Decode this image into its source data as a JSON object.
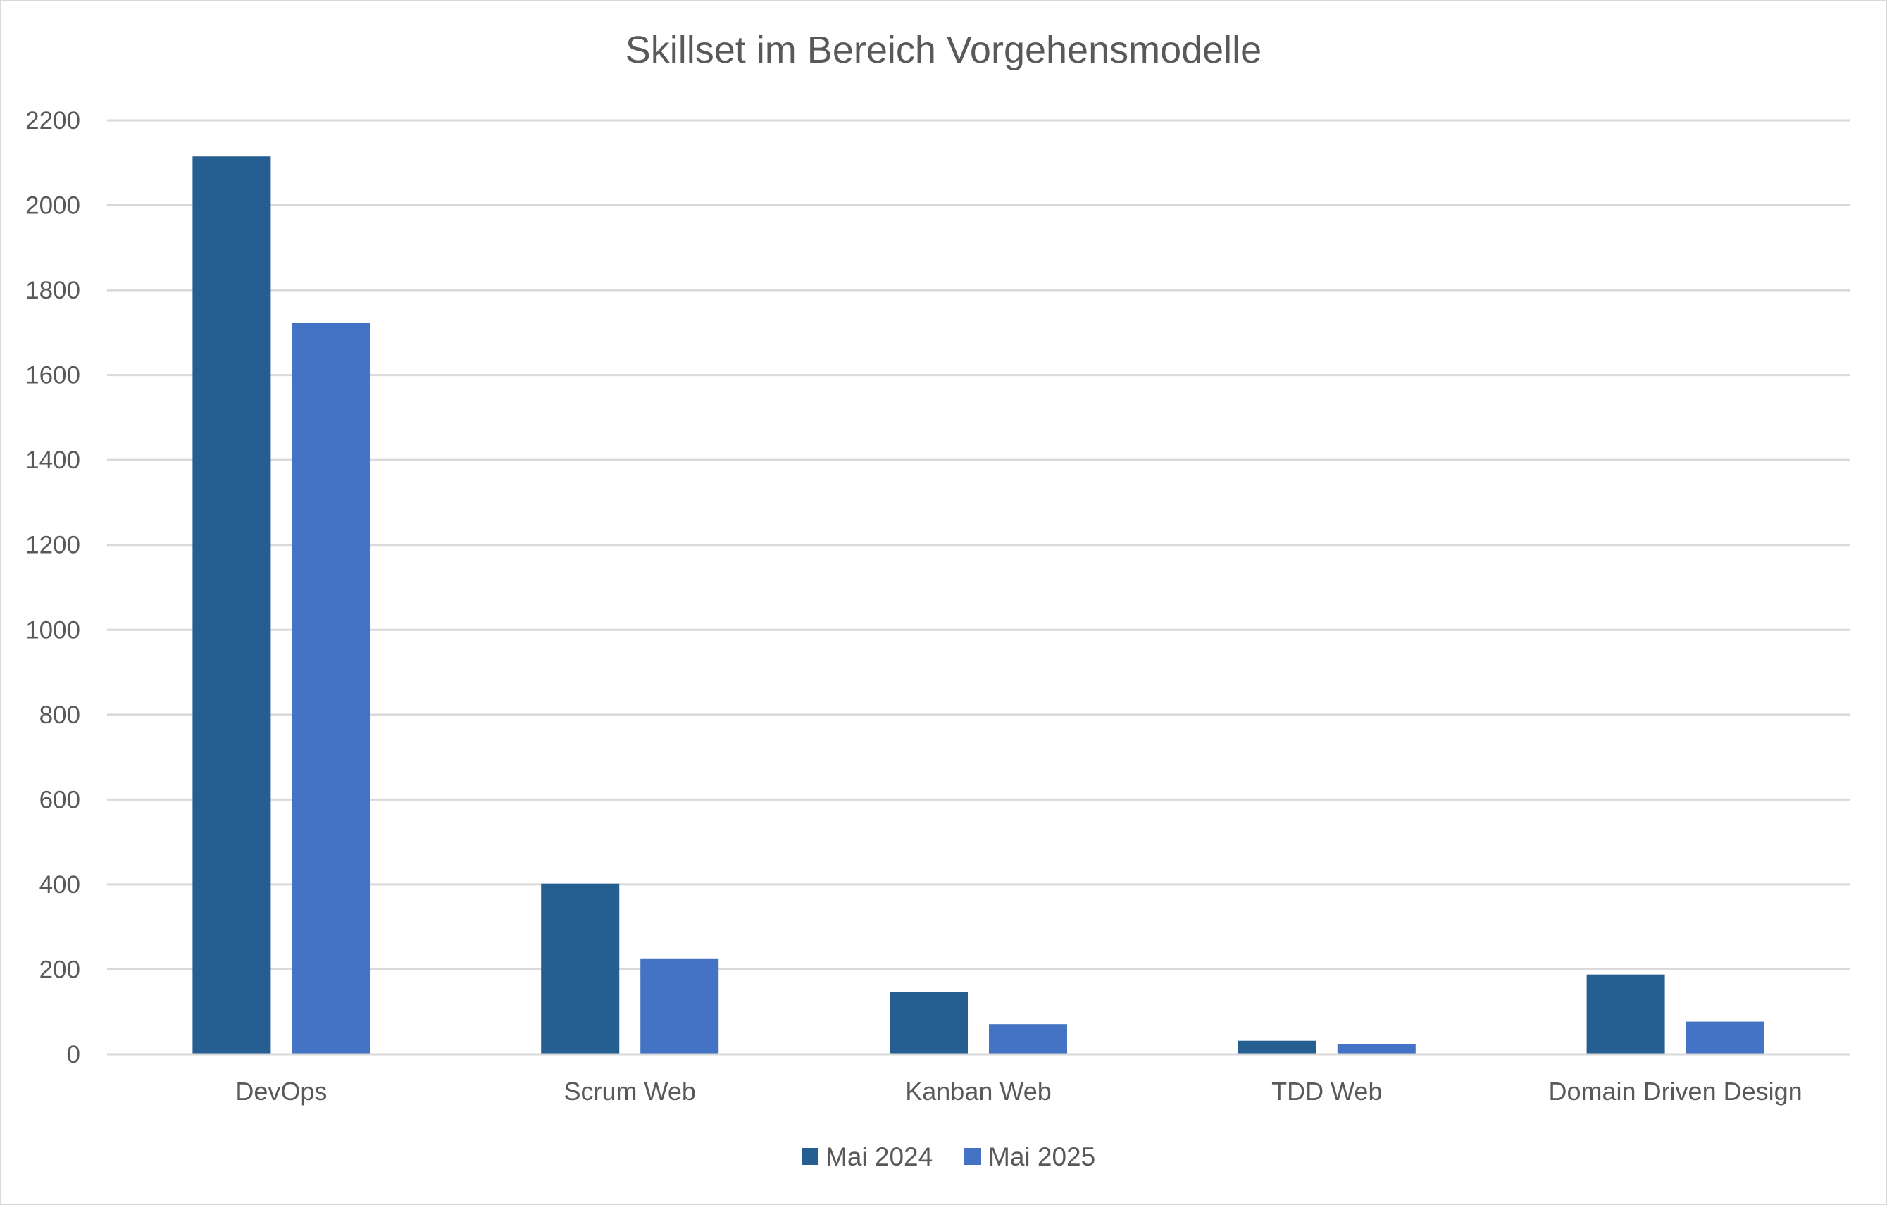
{
  "chart_data": {
    "type": "bar",
    "title": "Skillset im Bereich Vorgehensmodelle",
    "xlabel": "",
    "ylabel": "",
    "categories": [
      "DevOps",
      "Scrum Web",
      "Kanban Web",
      "TDD Web",
      "Domain Driven Design"
    ],
    "series": [
      {
        "name": "Mai 2024",
        "color": "#255e91",
        "values": [
          2115,
          402,
          147,
          32,
          188
        ]
      },
      {
        "name": "Mai 2025",
        "color": "#4472c4",
        "values": [
          1723,
          226,
          71,
          24,
          77
        ]
      }
    ],
    "ylim": [
      0,
      2200
    ],
    "yticks": [
      "0",
      "200",
      "400",
      "600",
      "800",
      "1000",
      "1200",
      "1400",
      "1600",
      "1800",
      "2000",
      "2200"
    ],
    "grid": true,
    "legend_position": "bottom"
  }
}
